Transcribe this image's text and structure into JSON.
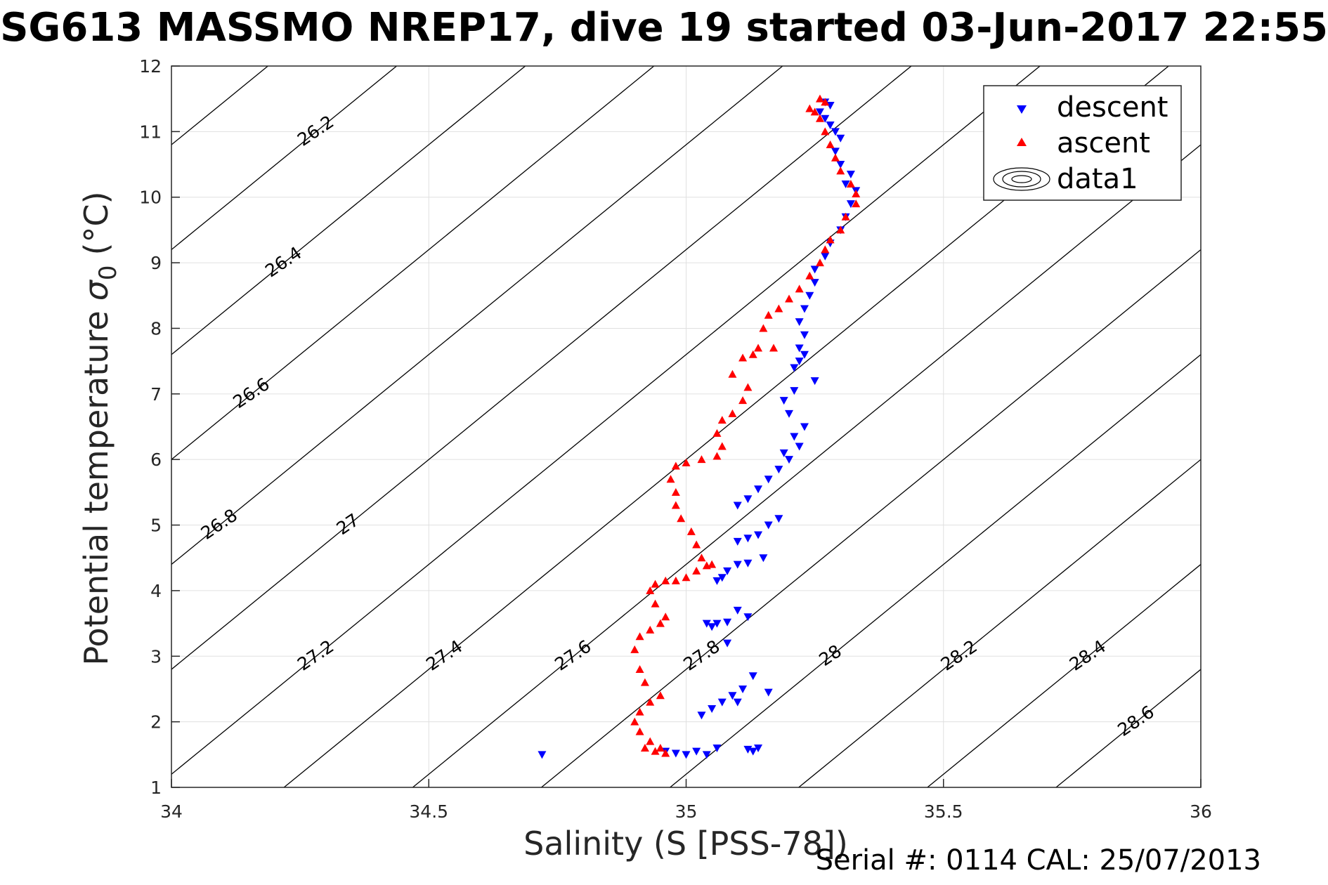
{
  "chart_data": {
    "type": "scatter",
    "title": "SG613 MASSMO NREP17, dive 19 started 03-Jun-2017 22:55",
    "xlabel": "Salinity (S [PSS-78])",
    "ylabel_main": "Potential temperature",
    "ylabel_symbol": "σ",
    "ylabel_sub": "0",
    "ylabel_unit": "(°C)",
    "xlim": [
      34,
      36
    ],
    "ylim": [
      1,
      12
    ],
    "x_ticks": [
      "34",
      "34.5",
      "35",
      "35.5",
      "36"
    ],
    "y_ticks": [
      "1",
      "2",
      "3",
      "4",
      "5",
      "6",
      "7",
      "8",
      "9",
      "10",
      "11",
      "12"
    ],
    "grid": true,
    "legend_position": "top-right",
    "legend": [
      "descent",
      "ascent",
      "data1"
    ],
    "footer": "Serial #: 0114  CAL: 25/07/2013",
    "colors": {
      "descent": "#0000ff",
      "ascent": "#ff0000",
      "contour": "#000000",
      "grid": "#e0e0e0"
    },
    "contour_levels": [
      "26",
      "26.2",
      "26.4",
      "26.6",
      "26.8",
      "27",
      "27.2",
      "27.4",
      "27.6",
      "27.8",
      "28",
      "28.2",
      "28.4",
      "28.6"
    ],
    "series": [
      {
        "name": "descent",
        "marker": "triangle-down",
        "points": [
          [
            34.72,
            1.5
          ],
          [
            34.96,
            1.55
          ],
          [
            34.98,
            1.52
          ],
          [
            35.0,
            1.5
          ],
          [
            35.02,
            1.55
          ],
          [
            35.04,
            1.5
          ],
          [
            35.06,
            1.6
          ],
          [
            35.12,
            1.58
          ],
          [
            35.14,
            1.6
          ],
          [
            35.13,
            1.55
          ],
          [
            35.03,
            2.1
          ],
          [
            35.05,
            2.2
          ],
          [
            35.07,
            2.3
          ],
          [
            35.09,
            2.4
          ],
          [
            35.11,
            2.5
          ],
          [
            35.13,
            2.7
          ],
          [
            35.16,
            2.45
          ],
          [
            35.1,
            2.3
          ],
          [
            35.04,
            3.5
          ],
          [
            35.06,
            3.5
          ],
          [
            35.08,
            3.52
          ],
          [
            35.1,
            3.7
          ],
          [
            35.12,
            3.6
          ],
          [
            35.08,
            3.2
          ],
          [
            35.05,
            3.45
          ],
          [
            35.06,
            4.15
          ],
          [
            35.08,
            4.3
          ],
          [
            35.1,
            4.4
          ],
          [
            35.12,
            4.42
          ],
          [
            35.15,
            4.5
          ],
          [
            35.07,
            4.2
          ],
          [
            35.1,
            4.75
          ],
          [
            35.12,
            4.8
          ],
          [
            35.14,
            4.85
          ],
          [
            35.16,
            5.0
          ],
          [
            35.18,
            5.1
          ],
          [
            35.1,
            5.3
          ],
          [
            35.12,
            5.4
          ],
          [
            35.14,
            5.55
          ],
          [
            35.16,
            5.7
          ],
          [
            35.18,
            5.85
          ],
          [
            35.2,
            6.0
          ],
          [
            35.22,
            6.2
          ],
          [
            35.19,
            6.1
          ],
          [
            35.21,
            6.35
          ],
          [
            35.23,
            6.5
          ],
          [
            35.2,
            6.7
          ],
          [
            35.19,
            6.9
          ],
          [
            35.21,
            7.05
          ],
          [
            35.25,
            7.2
          ],
          [
            35.21,
            7.4
          ],
          [
            35.22,
            7.5
          ],
          [
            35.23,
            7.6
          ],
          [
            35.22,
            7.7
          ],
          [
            35.23,
            7.9
          ],
          [
            35.22,
            8.1
          ],
          [
            35.23,
            8.3
          ],
          [
            35.24,
            8.5
          ],
          [
            35.25,
            8.7
          ],
          [
            35.25,
            8.9
          ],
          [
            35.27,
            9.1
          ],
          [
            35.28,
            9.3
          ],
          [
            35.3,
            9.5
          ],
          [
            35.31,
            9.7
          ],
          [
            35.32,
            9.9
          ],
          [
            35.33,
            10.1
          ],
          [
            35.31,
            10.2
          ],
          [
            35.32,
            10.35
          ],
          [
            35.3,
            10.5
          ],
          [
            35.29,
            10.7
          ],
          [
            35.3,
            10.9
          ],
          [
            35.29,
            11.0
          ],
          [
            35.28,
            11.1
          ],
          [
            35.27,
            11.2
          ],
          [
            35.26,
            11.3
          ],
          [
            35.27,
            11.45
          ],
          [
            35.28,
            11.4
          ]
        ]
      },
      {
        "name": "ascent",
        "marker": "triangle-up",
        "points": [
          [
            34.92,
            1.6
          ],
          [
            34.94,
            1.55
          ],
          [
            34.96,
            1.52
          ],
          [
            34.95,
            1.6
          ],
          [
            34.93,
            1.7
          ],
          [
            34.91,
            1.85
          ],
          [
            34.9,
            2.0
          ],
          [
            34.91,
            2.15
          ],
          [
            34.93,
            2.3
          ],
          [
            34.95,
            2.4
          ],
          [
            34.92,
            2.6
          ],
          [
            34.91,
            2.8
          ],
          [
            34.9,
            3.1
          ],
          [
            34.91,
            3.3
          ],
          [
            34.93,
            3.4
          ],
          [
            34.95,
            3.5
          ],
          [
            34.96,
            3.6
          ],
          [
            34.94,
            3.8
          ],
          [
            34.93,
            4.0
          ],
          [
            34.94,
            4.1
          ],
          [
            34.96,
            4.15
          ],
          [
            34.98,
            4.15
          ],
          [
            35.0,
            4.2
          ],
          [
            35.02,
            4.3
          ],
          [
            35.04,
            4.38
          ],
          [
            35.05,
            4.4
          ],
          [
            35.03,
            4.5
          ],
          [
            35.02,
            4.7
          ],
          [
            35.01,
            4.9
          ],
          [
            34.99,
            5.1
          ],
          [
            34.98,
            5.3
          ],
          [
            34.98,
            5.5
          ],
          [
            34.97,
            5.7
          ],
          [
            34.98,
            5.9
          ],
          [
            35.0,
            5.95
          ],
          [
            35.03,
            6.0
          ],
          [
            35.06,
            6.05
          ],
          [
            35.07,
            6.2
          ],
          [
            35.06,
            6.4
          ],
          [
            35.07,
            6.6
          ],
          [
            35.09,
            6.7
          ],
          [
            35.11,
            6.9
          ],
          [
            35.12,
            7.1
          ],
          [
            35.09,
            7.3
          ],
          [
            35.11,
            7.55
          ],
          [
            35.13,
            7.6
          ],
          [
            35.14,
            7.7
          ],
          [
            35.17,
            7.7
          ],
          [
            35.15,
            8.0
          ],
          [
            35.16,
            8.2
          ],
          [
            35.18,
            8.3
          ],
          [
            35.2,
            8.45
          ],
          [
            35.22,
            8.6
          ],
          [
            35.24,
            8.8
          ],
          [
            35.26,
            9.0
          ],
          [
            35.27,
            9.2
          ],
          [
            35.28,
            9.35
          ],
          [
            35.3,
            9.5
          ],
          [
            35.31,
            9.7
          ],
          [
            35.33,
            9.9
          ],
          [
            35.33,
            10.05
          ],
          [
            35.32,
            10.2
          ],
          [
            35.3,
            10.4
          ],
          [
            35.29,
            10.6
          ],
          [
            35.28,
            10.8
          ],
          [
            35.27,
            11.0
          ],
          [
            35.26,
            11.2
          ],
          [
            35.25,
            11.3
          ],
          [
            35.24,
            11.35
          ],
          [
            35.26,
            11.5
          ],
          [
            35.27,
            11.45
          ]
        ]
      }
    ]
  }
}
